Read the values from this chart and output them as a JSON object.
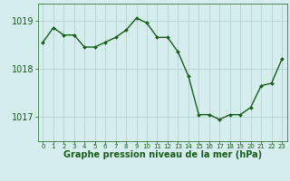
{
  "x": [
    0,
    1,
    2,
    3,
    4,
    5,
    6,
    7,
    8,
    9,
    10,
    11,
    12,
    13,
    14,
    15,
    16,
    17,
    18,
    19,
    20,
    21,
    22,
    23
  ],
  "y": [
    1018.55,
    1018.85,
    1018.7,
    1018.7,
    1018.45,
    1018.45,
    1018.55,
    1018.65,
    1018.8,
    1019.05,
    1018.95,
    1018.65,
    1018.65,
    1018.35,
    1017.85,
    1017.05,
    1017.05,
    1016.95,
    1017.05,
    1017.05,
    1017.2,
    1017.65,
    1017.7,
    1018.2
  ],
  "line_color": "#1a5c1a",
  "marker": "D",
  "marker_size": 2.0,
  "bg_color": "#d5eeed",
  "grid_color": "#b0cccc",
  "xlabel": "Graphe pression niveau de la mer (hPa)",
  "xlabel_fontsize": 7,
  "xlabel_color": "#1a5c1a",
  "tick_color": "#1a5c1a",
  "yticks": [
    1017,
    1018,
    1019
  ],
  "ylim": [
    1016.5,
    1019.35
  ],
  "xlim": [
    -0.5,
    23.5
  ],
  "xtick_labels": [
    "0",
    "1",
    "2",
    "3",
    "4",
    "5",
    "6",
    "7",
    "8",
    "9",
    "10",
    "11",
    "12",
    "13",
    "14",
    "15",
    "16",
    "17",
    "18",
    "19",
    "20",
    "21",
    "22",
    "23"
  ],
  "line_width": 1.0,
  "ytick_fontsize": 7,
  "xtick_fontsize": 5.0
}
